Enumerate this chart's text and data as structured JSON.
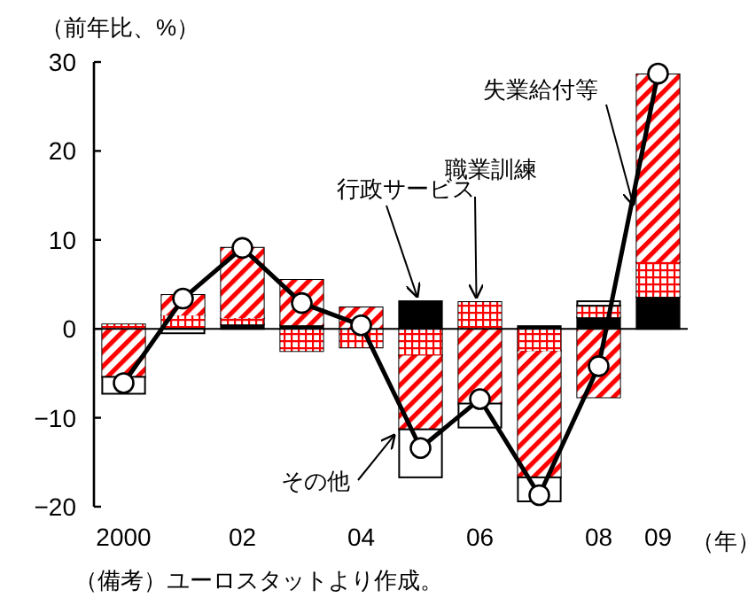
{
  "chart_data": {
    "type": "bar",
    "stacked": true,
    "ylabel": "（前年比、%）",
    "xlabel": "（年）",
    "categories": [
      "2000",
      null,
      "02",
      null,
      "04",
      null,
      "06",
      null,
      "08",
      "09"
    ],
    "ylim": [
      -20,
      30
    ],
    "yticks": [
      -20,
      -10,
      0,
      10,
      20,
      30
    ],
    "ref_lines": [
      {
        "axis": "y",
        "value": 0,
        "color": "#000000"
      }
    ],
    "series": [
      {
        "name": "行政サービス",
        "color": "#000000",
        "values": [
          null,
          null,
          0.5,
          0.4,
          null,
          3.1,
          null,
          0.3,
          1.3,
          3.6
        ]
      },
      {
        "name": "職業訓練",
        "color": "#ff0000",
        "values": [
          0.5,
          1.5,
          0.7,
          -2.5,
          -2.1,
          -3.0,
          3.0,
          -2.5,
          1.3,
          3.9
        ]
      },
      {
        "name": "失業給付等",
        "color": "#ff0000",
        "values": [
          -5.4,
          2.3,
          7.9,
          5.1,
          2.4,
          -8.3,
          -8.4,
          -14.2,
          -7.7,
          21.1
        ]
      },
      {
        "name": "その他",
        "color": "#ffffff",
        "values": [
          -1.9,
          -0.5,
          null,
          null,
          null,
          -5.4,
          -2.7,
          -2.7,
          0.5,
          null
        ]
      },
      {
        "type": "line",
        "color": "#000000",
        "marker": "circle",
        "values": [
          -6.1,
          3.4,
          9.1,
          2.9,
          0.4,
          -13.4,
          -7.9,
          -18.7,
          -4.2,
          28.7
        ]
      }
    ],
    "annotations": [
      "（備考）ユーロスタットより作成。"
    ]
  }
}
